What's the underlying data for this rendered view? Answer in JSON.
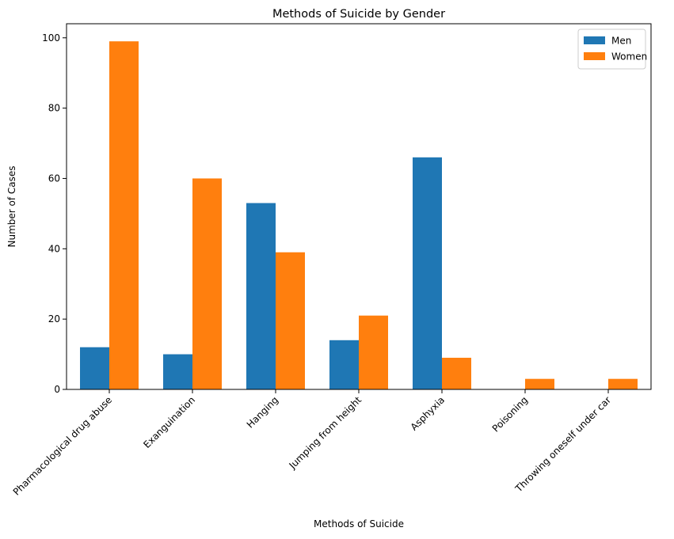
{
  "chart_data": {
    "type": "bar",
    "title": "Methods of Suicide by Gender",
    "xlabel": "Methods of Suicide",
    "ylabel": "Number of Cases",
    "categories": [
      "Pharmacological drug abuse",
      "Exanguination",
      "Hanging",
      "Jumping from height",
      "Asphyxia",
      "Poisoning",
      "Throwing oneself under car"
    ],
    "series": [
      {
        "name": "Men",
        "color": "#1f77b4",
        "values": [
          12,
          10,
          53,
          14,
          66,
          0,
          0
        ]
      },
      {
        "name": "Women",
        "color": "#ff7f0e",
        "values": [
          99,
          60,
          39,
          21,
          9,
          3,
          3
        ]
      }
    ],
    "ylim": [
      0,
      104
    ],
    "yticks": [
      0,
      20,
      40,
      60,
      80,
      100
    ],
    "grid": false,
    "legend_position": "top-right"
  }
}
